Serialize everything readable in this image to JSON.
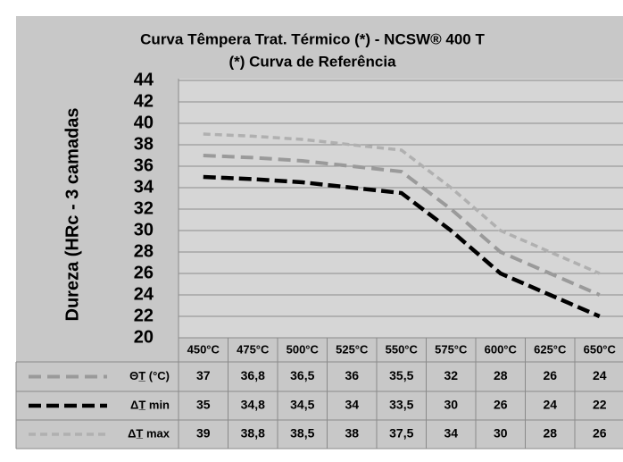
{
  "chart_data": {
    "type": "line",
    "title": "Curva Têmpera  Trat. Térmico (*) - NCSW® 400 T",
    "subtitle": "(*) Curva de Referência",
    "y_label": "Dureza (HRc - 3 camadas",
    "categories": [
      "450°C",
      "475°C",
      "500°C",
      "525°C",
      "550°C",
      "575°C",
      "600°C",
      "625°C",
      "650°C"
    ],
    "series": [
      {
        "name": "ΘT̲ (°C)",
        "color": "#9a9a9a",
        "values": [
          37,
          36.8,
          36.5,
          36,
          35.5,
          32,
          28,
          26,
          24
        ],
        "value_labels": [
          "37",
          "36,8",
          "36,5",
          "36",
          "35,5",
          "32",
          "28",
          "26",
          "24"
        ]
      },
      {
        "name": "ΔT̲ min",
        "color": "#000000",
        "values": [
          35,
          34.8,
          34.5,
          34,
          33.5,
          30,
          26,
          24,
          22
        ],
        "value_labels": [
          "35",
          "34,8",
          "34,5",
          "34",
          "33,5",
          "30",
          "26",
          "24",
          "22"
        ]
      },
      {
        "name": "ΔT̲ max",
        "color": "#b0b0b0",
        "values": [
          39,
          38.8,
          38.5,
          38,
          37.5,
          34,
          30,
          28,
          26
        ],
        "value_labels": [
          "39",
          "38,8",
          "38,5",
          "38",
          "37,5",
          "34",
          "30",
          "28",
          "26"
        ]
      }
    ],
    "ylim": [
      20,
      44
    ],
    "yticks": [
      20,
      22,
      24,
      26,
      28,
      30,
      32,
      34,
      36,
      38,
      40,
      42,
      44
    ],
    "grid": true
  }
}
